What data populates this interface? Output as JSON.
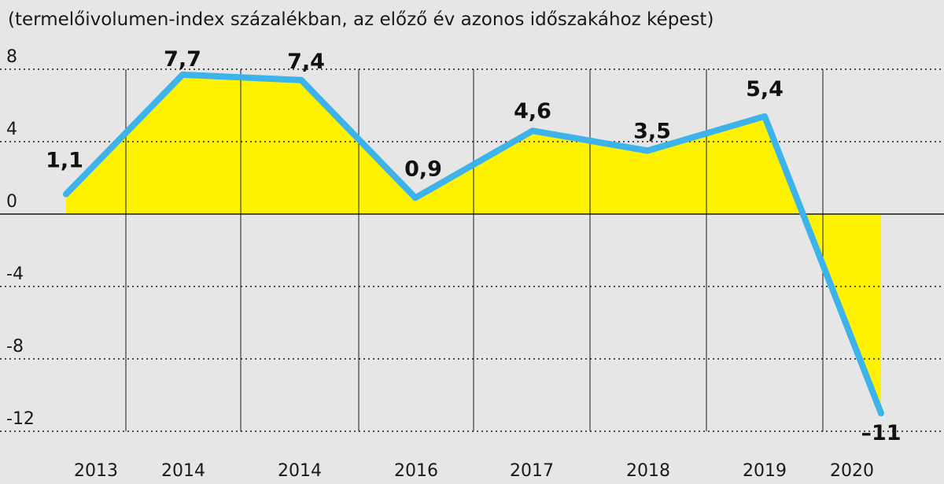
{
  "chart_data": {
    "type": "area",
    "title": "",
    "subtitle": "(termelőivolumen-index százalékban, az előző év azonos időszakához képest)",
    "xlabel": "",
    "ylabel": "",
    "categories": [
      "2013",
      "2014",
      "2014",
      "2016",
      "2017",
      "2018",
      "2019",
      "2020"
    ],
    "series": [
      {
        "name": "termelőivolumen-index",
        "values": [
          1.1,
          7.7,
          7.4,
          0.9,
          4.6,
          3.5,
          5.4,
          -11
        ],
        "labels": [
          "1,1",
          "7,7",
          "7,4",
          "0,9",
          "4,6",
          "3,5",
          "5,4",
          "–11"
        ]
      }
    ],
    "ylim": [
      -12,
      8
    ],
    "yticks": [
      8,
      4,
      0,
      -4,
      -8,
      -12
    ],
    "ytick_labels": [
      "8",
      "4",
      "0",
      "-4",
      "-8",
      "-12"
    ],
    "grid": true,
    "legend": "none",
    "colors": {
      "fill": "#fff200",
      "line": "#3cb3ea",
      "grid": "#1a1a1a",
      "background": "#e6e6e6"
    }
  }
}
